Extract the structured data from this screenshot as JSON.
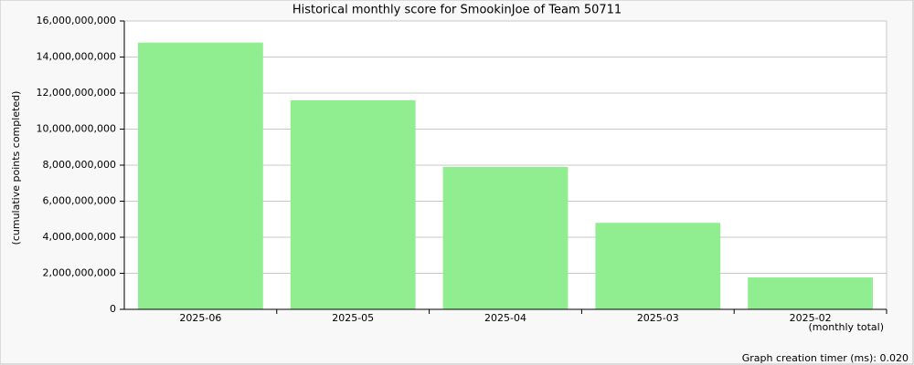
{
  "chart_data": {
    "type": "bar",
    "title": "Historical monthly score for SmookinJoe of Team 50711",
    "y_label": "(cumulative points completed)",
    "x_label": "(monthly total)",
    "footer": "Graph creation timer (ms): 0.020",
    "categories": [
      "2025-06",
      "2025-05",
      "2025-04",
      "2025-03",
      "2025-02"
    ],
    "values": [
      14800000000,
      11600000000,
      7900000000,
      4800000000,
      1770000000
    ],
    "color": "#90ee90",
    "ylim": [
      0,
      16000000000
    ],
    "yticks": [
      0,
      {
        "value": 2000000000,
        "label": "2,000,000,000"
      },
      {
        "value": 4000000000,
        "label": "4,000,000,000"
      },
      {
        "value": 6000000000,
        "label": "6,000,000,000"
      },
      {
        "value": 8000000000,
        "label": "8,000,000,000"
      },
      {
        "value": 10000000000,
        "label": "10,000,000,000"
      },
      {
        "value": 12000000000,
        "label": "12,000,000,000"
      },
      {
        "value": 14000000000,
        "label": "14,000,000,000"
      },
      {
        "value": 16000000000,
        "label": "16,000,000,000"
      }
    ],
    "grid": true
  }
}
